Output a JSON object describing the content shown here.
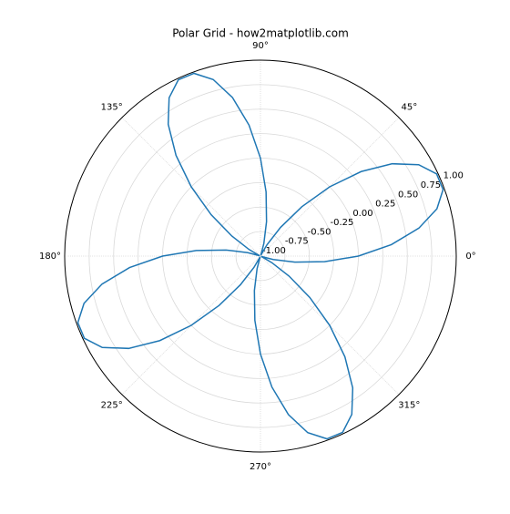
{
  "chart_data": {
    "type": "polar",
    "title": "Polar Grid - how2matplotlib.com",
    "x": [
      0,
      5,
      10,
      15,
      20,
      25,
      30,
      35,
      40,
      45,
      50,
      55,
      60,
      65,
      70,
      75,
      80,
      85,
      90,
      95,
      100,
      105,
      110,
      115,
      120,
      125,
      130,
      135,
      140,
      145,
      150,
      155,
      160,
      165,
      170,
      175,
      180,
      185,
      190,
      195,
      200,
      205,
      210,
      215,
      220,
      225,
      230,
      235,
      240,
      245,
      250,
      255,
      260,
      265,
      270,
      275,
      280,
      285,
      290,
      295,
      300,
      305,
      310,
      315,
      320,
      325,
      330,
      335,
      340,
      345,
      350,
      355,
      360
    ],
    "series": [
      {
        "color": "#1f77b4",
        "values": [
          0,
          0.342,
          0.643,
          0.866,
          0.985,
          0.985,
          0.866,
          0.643,
          0.342,
          0,
          -0.342,
          -0.643,
          -0.866,
          -0.985,
          -0.985,
          -0.866,
          -0.643,
          -0.342,
          0,
          0.342,
          0.643,
          0.866,
          0.985,
          0.985,
          0.866,
          0.643,
          0.342,
          0,
          -0.342,
          -0.643,
          -0.866,
          -0.985,
          -0.985,
          -0.866,
          -0.643,
          -0.342,
          0,
          0.342,
          0.643,
          0.866,
          0.985,
          0.985,
          0.866,
          0.643,
          0.342,
          0,
          -0.342,
          -0.643,
          -0.866,
          -0.985,
          -0.985,
          -0.866,
          -0.643,
          -0.342,
          0,
          0.342,
          0.643,
          0.866,
          0.985,
          0.985,
          0.866,
          0.643,
          0.342,
          0,
          -0.342,
          -0.643,
          -0.866,
          -0.985,
          -0.985,
          -0.866,
          -0.643,
          -0.342,
          0
        ]
      }
    ],
    "ylim": [
      -1,
      1
    ],
    "yticks": [
      {
        "value": -1,
        "label": "-1.00"
      },
      {
        "value": -0.75,
        "label": "-0.75"
      },
      {
        "value": -0.5,
        "label": "-0.50"
      },
      {
        "value": -0.25,
        "label": "-0.25"
      },
      {
        "value": 0,
        "label": "0.00"
      },
      {
        "value": 0.25,
        "label": "0.25"
      },
      {
        "value": 0.5,
        "label": "0.50"
      },
      {
        "value": 0.75,
        "label": "0.75"
      },
      {
        "value": 1,
        "label": "1.00"
      }
    ],
    "xticks": [
      {
        "value": 0,
        "label": "0°"
      },
      {
        "value": 45,
        "label": "45°"
      },
      {
        "value": 90,
        "label": "90°"
      },
      {
        "value": 135,
        "label": "135°"
      },
      {
        "value": 180,
        "label": "180°"
      },
      {
        "value": 225,
        "label": "225°"
      },
      {
        "value": 270,
        "label": "270°"
      },
      {
        "value": 315,
        "label": "315°"
      }
    ],
    "grid": true
  }
}
